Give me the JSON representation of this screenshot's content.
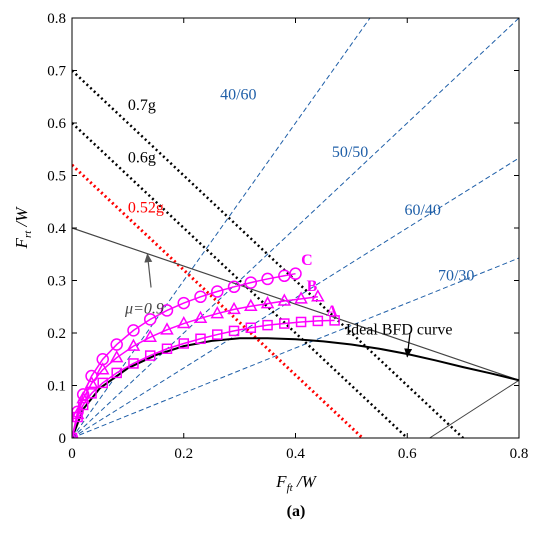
{
  "chart_data": {
    "type": "line",
    "subplot_label": "(a)",
    "xlabel": {
      "main": "F",
      "sub": "ft",
      "rest": " /W"
    },
    "ylabel": {
      "main": "F",
      "sub": "rt",
      "rest": " /W"
    },
    "xlim": [
      0,
      0.8
    ],
    "ylim": [
      0,
      0.8
    ],
    "xticks": [
      0,
      0.2,
      0.4,
      0.6,
      0.8
    ],
    "yticks": [
      0,
      0.1,
      0.2,
      0.3,
      0.4,
      0.5,
      0.6,
      0.7,
      0.8
    ],
    "xtick_labels": [
      "0",
      "0.2",
      "0.4",
      "0.6",
      "0.8"
    ],
    "ytick_labels": [
      "0",
      "0.1",
      "0.2",
      "0.3",
      "0.4",
      "0.5",
      "0.6",
      "0.7",
      "0.8"
    ],
    "colors": {
      "ratio": "#1f5fa8",
      "curves": "#ff00ff",
      "red": "#ff0000",
      "black": "#000000",
      "gray": "#444444"
    },
    "ratio_lines": [
      {
        "label": "40/60",
        "slope": 1.5,
        "label_pos": [
          0.265,
          0.645
        ]
      },
      {
        "label": "50/50",
        "slope": 1.0,
        "label_pos": [
          0.465,
          0.535
        ]
      },
      {
        "label": "60/40",
        "slope": 0.6667,
        "label_pos": [
          0.595,
          0.425
        ]
      },
      {
        "label": "70/30",
        "slope": 0.4286,
        "label_pos": [
          0.655,
          0.3
        ]
      }
    ],
    "g_lines": [
      {
        "label": "0.7g",
        "value": 0.7,
        "color": "black",
        "label_pos": [
          0.1,
          0.625
        ]
      },
      {
        "label": "0.6g",
        "value": 0.6,
        "color": "black",
        "label_pos": [
          0.1,
          0.525
        ]
      },
      {
        "label": "0.52g",
        "value": 0.52,
        "color": "red",
        "label_pos": [
          0.1,
          0.43
        ]
      }
    ],
    "mu_line": {
      "label": "μ=0.9",
      "points": [
        [
          0,
          0.4
        ],
        [
          0.8,
          0.11
        ]
      ],
      "label_pos": [
        0.12,
        0.26
      ],
      "arrow_to": [
        0.135,
        0.35
      ]
    },
    "aux_line": {
      "points": [
        [
          0.64,
          0
        ],
        [
          0.8,
          0.11
        ]
      ]
    },
    "ideal_bfd": {
      "label": "Ideal BFD curve",
      "label_pos": [
        0.49,
        0.205
      ],
      "arrow_to": [
        0.6,
        0.155
      ],
      "x": [
        0,
        0.02,
        0.05,
        0.1,
        0.15,
        0.2,
        0.25,
        0.3,
        0.35,
        0.4,
        0.45,
        0.5,
        0.55,
        0.6,
        0.65,
        0.7,
        0.75,
        0.8
      ],
      "y": [
        0,
        0.055,
        0.095,
        0.133,
        0.158,
        0.175,
        0.185,
        0.19,
        0.19,
        0.188,
        0.184,
        0.178,
        0.17,
        0.16,
        0.148,
        0.135,
        0.123,
        0.11
      ]
    },
    "series": [
      {
        "name": "A",
        "marker": "square",
        "label_pos": [
          0.455,
          0.232
        ],
        "x": [
          0,
          0.01,
          0.02,
          0.035,
          0.055,
          0.08,
          0.11,
          0.14,
          0.17,
          0.2,
          0.23,
          0.26,
          0.29,
          0.32,
          0.35,
          0.38,
          0.41,
          0.44,
          0.47
        ],
        "y": [
          0,
          0.04,
          0.063,
          0.085,
          0.105,
          0.124,
          0.142,
          0.157,
          0.17,
          0.18,
          0.189,
          0.197,
          0.204,
          0.21,
          0.215,
          0.218,
          0.221,
          0.223,
          0.224
        ]
      },
      {
        "name": "B",
        "marker": "triangle",
        "label_pos": [
          0.42,
          0.28
        ],
        "x": [
          0,
          0.01,
          0.02,
          0.035,
          0.055,
          0.08,
          0.11,
          0.14,
          0.17,
          0.2,
          0.23,
          0.26,
          0.29,
          0.32,
          0.35,
          0.38,
          0.41,
          0.44
        ],
        "y": [
          0,
          0.045,
          0.075,
          0.104,
          0.13,
          0.153,
          0.175,
          0.192,
          0.206,
          0.218,
          0.228,
          0.237,
          0.245,
          0.251,
          0.256,
          0.261,
          0.265,
          0.269
        ]
      },
      {
        "name": "C",
        "marker": "circle",
        "label_pos": [
          0.41,
          0.33
        ],
        "x": [
          0,
          0.01,
          0.02,
          0.035,
          0.055,
          0.08,
          0.11,
          0.14,
          0.17,
          0.2,
          0.23,
          0.26,
          0.29,
          0.32,
          0.35,
          0.38,
          0.4
        ],
        "y": [
          0,
          0.05,
          0.083,
          0.118,
          0.15,
          0.178,
          0.205,
          0.226,
          0.243,
          0.257,
          0.269,
          0.279,
          0.288,
          0.296,
          0.303,
          0.309,
          0.313
        ]
      }
    ]
  }
}
